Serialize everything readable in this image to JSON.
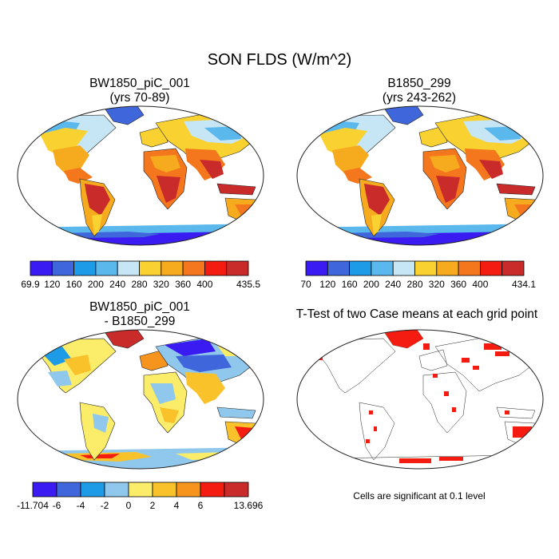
{
  "figure": {
    "title": "SON FLDS (W/m^2)",
    "note": "Cells are significant at 0.1 level"
  },
  "panels": [
    {
      "title_line1": "BW1850_piC_001",
      "title_line2": "(yrs 70-89)"
    },
    {
      "title_line1": "B1850_299",
      "title_line2": "(yrs 243-262)"
    },
    {
      "title_line1": "BW1850_piC_001",
      "title_line2": "- B1850_299"
    },
    {
      "title_line1": "T-Test of two Case means at each grid point",
      "title_line2": ""
    }
  ],
  "colorbars": [
    {
      "labels": [
        "69.9",
        "120",
        "160",
        "200",
        "240",
        "280",
        "320",
        "360",
        "400",
        "435.5"
      ],
      "colors": [
        "#3a1cf2",
        "#3f66da",
        "#1e9be6",
        "#5ab8ec",
        "#c7e6f5",
        "#f9d232",
        "#f6ab1e",
        "#f4771e",
        "#f41c10",
        "#c92a2a"
      ]
    },
    {
      "labels": [
        "70",
        "120",
        "160",
        "200",
        "240",
        "280",
        "320",
        "360",
        "400",
        "434.1"
      ],
      "colors": [
        "#3a1cf2",
        "#3f66da",
        "#1e9be6",
        "#5ab8ec",
        "#c7e6f5",
        "#f9d232",
        "#f6ab1e",
        "#f4771e",
        "#f41c10",
        "#c92a2a"
      ]
    },
    {
      "labels": [
        "-11.704",
        "-6",
        "-4",
        "-2",
        "0",
        "2",
        "4",
        "6",
        "13.696"
      ],
      "colors": [
        "#3a1cf2",
        "#3f66da",
        "#1e9be6",
        "#8fc8ec",
        "#fbec6a",
        "#f9c22b",
        "#f6941e",
        "#f41c10",
        "#c92a2a"
      ]
    }
  ]
}
